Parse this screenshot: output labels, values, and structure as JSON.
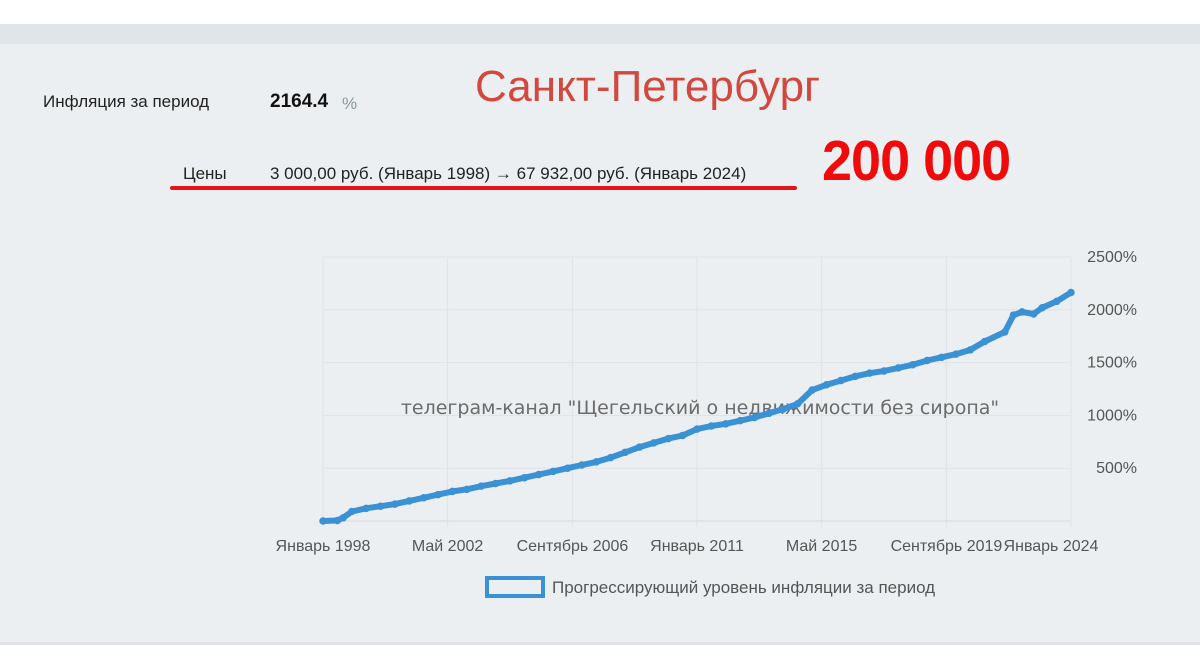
{
  "summary": {
    "inflation_label": "Инфляция за период",
    "inflation_value": "2164.4",
    "inflation_unit": "%",
    "prices_label": "Цены",
    "prices_value": "3 000,00 руб. (Январь 1998) → 67 932,00 руб. (Январь 2024)"
  },
  "overlay": {
    "city": "Санкт-Петербург",
    "big_number": "200 000",
    "watermark": "телеграм-канал \"Щегельский о недвижимости без сиропа\""
  },
  "colors": {
    "series": "#3a92d4",
    "city_text": "#d2473e",
    "big_number": "#f00a0a",
    "underline": "#e5141a"
  },
  "chart_data": {
    "type": "line",
    "xlabel": "",
    "ylabel": "",
    "x_range": [
      1998.0,
      2024.0
    ],
    "ylim": [
      0,
      2500
    ],
    "y_ticks": [
      500,
      1000,
      1500,
      2000,
      2500
    ],
    "y_tick_labels": [
      "500%",
      "1000%",
      "1500%",
      "2000%",
      "2500%"
    ],
    "x_ticks": [
      1998.0,
      2002.33,
      2006.67,
      2011.0,
      2015.33,
      2019.67,
      2024.0
    ],
    "x_tick_labels": [
      "Январь 1998",
      "Май 2002",
      "Сентябрь 2006",
      "Январь 2011",
      "Май 2015",
      "Сентябрь 2019",
      "Январь 2024"
    ],
    "grid": true,
    "legend": {
      "position": "bottom-center",
      "entries": [
        "Прогрессирующий уровень инфляции за период"
      ]
    },
    "series": [
      {
        "name": "Прогрессирующий уровень инфляции за период",
        "points": [
          [
            1998.0,
            0
          ],
          [
            1998.5,
            5
          ],
          [
            1998.7,
            30
          ],
          [
            1999.0,
            90
          ],
          [
            1999.5,
            120
          ],
          [
            2000.0,
            140
          ],
          [
            2000.5,
            160
          ],
          [
            2001.0,
            190
          ],
          [
            2001.5,
            220
          ],
          [
            2002.0,
            250
          ],
          [
            2002.5,
            280
          ],
          [
            2003.0,
            300
          ],
          [
            2003.5,
            330
          ],
          [
            2004.0,
            355
          ],
          [
            2004.5,
            380
          ],
          [
            2005.0,
            410
          ],
          [
            2005.5,
            440
          ],
          [
            2006.0,
            470
          ],
          [
            2006.5,
            500
          ],
          [
            2007.0,
            530
          ],
          [
            2007.5,
            560
          ],
          [
            2008.0,
            600
          ],
          [
            2008.5,
            650
          ],
          [
            2009.0,
            700
          ],
          [
            2009.5,
            740
          ],
          [
            2010.0,
            780
          ],
          [
            2010.5,
            810
          ],
          [
            2011.0,
            870
          ],
          [
            2011.5,
            900
          ],
          [
            2012.0,
            920
          ],
          [
            2012.5,
            950
          ],
          [
            2013.0,
            980
          ],
          [
            2013.5,
            1020
          ],
          [
            2014.0,
            1060
          ],
          [
            2014.5,
            1110
          ],
          [
            2015.0,
            1240
          ],
          [
            2015.5,
            1290
          ],
          [
            2016.0,
            1330
          ],
          [
            2016.5,
            1370
          ],
          [
            2017.0,
            1400
          ],
          [
            2017.5,
            1420
          ],
          [
            2018.0,
            1450
          ],
          [
            2018.5,
            1480
          ],
          [
            2019.0,
            1520
          ],
          [
            2019.5,
            1550
          ],
          [
            2020.0,
            1580
          ],
          [
            2020.5,
            1620
          ],
          [
            2021.0,
            1700
          ],
          [
            2021.7,
            1790
          ],
          [
            2022.0,
            1950
          ],
          [
            2022.3,
            1980
          ],
          [
            2022.7,
            1960
          ],
          [
            2023.0,
            2020
          ],
          [
            2023.5,
            2080
          ],
          [
            2024.0,
            2164
          ]
        ]
      }
    ]
  }
}
